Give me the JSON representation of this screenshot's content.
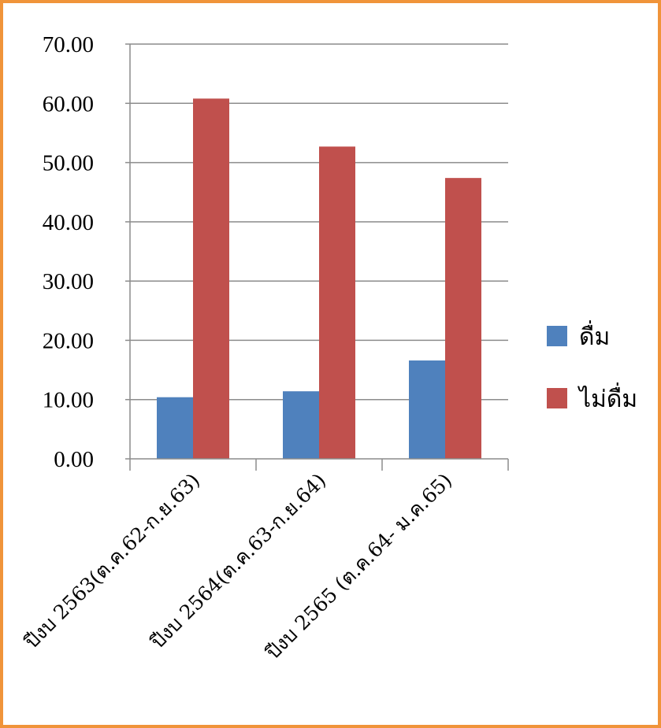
{
  "chart_data": {
    "type": "bar",
    "categories": [
      "ปีงบ 2563(ต.ค.62-ก.ย.63)",
      "ปีงบ 2564(ต.ค.63-ก.ย.64)",
      "ปีงบ 2565 (ต.ค.64- ม.ค.65)"
    ],
    "series": [
      {
        "name": "ดื่ม",
        "color": "#4F81BD",
        "values": [
          10.4,
          11.4,
          16.6
        ]
      },
      {
        "name": "ไม่ดื่ม",
        "color": "#C0504D",
        "values": [
          60.8,
          52.7,
          47.4
        ]
      }
    ],
    "yticks": [
      "0.00",
      "10.00",
      "20.00",
      "30.00",
      "40.00",
      "50.00",
      "60.00",
      "70.00"
    ],
    "ylim": [
      0,
      70
    ],
    "grid": true,
    "legend_position": "right",
    "frame_color": "#F0943A",
    "title": "",
    "xlabel": "",
    "ylabel": ""
  }
}
